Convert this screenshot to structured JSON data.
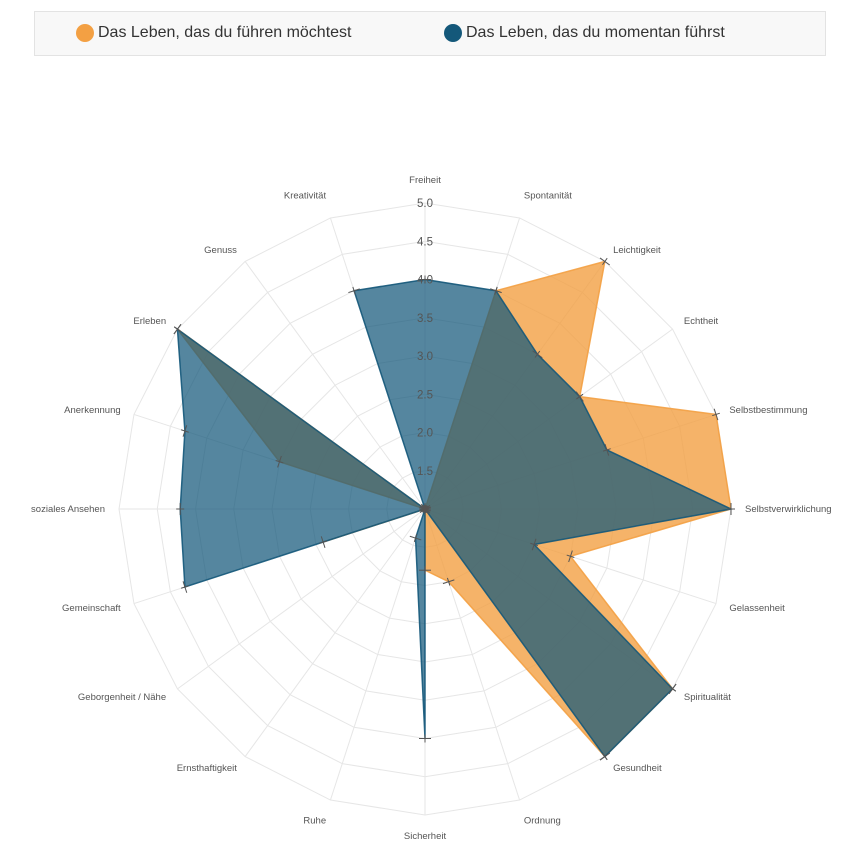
{
  "legend": {
    "items": [
      {
        "label": "Das Leben, das du führen möchtest",
        "color": "#f3a043"
      },
      {
        "label": "Das Leben, das du momentan führst",
        "color": "#14587a"
      }
    ]
  },
  "chart_data": {
    "type": "radar",
    "axes": [
      "Freiheit",
      "Spontanität",
      "Leichtigkeit",
      "Echtheit",
      "Selbstbestimmung",
      "Selbstverwirklichung",
      "Gelassenheit",
      "Spiritualität",
      "Gesundheit",
      "Ordnung",
      "Sicherheit",
      "Ruhe",
      "Ernsthaftigkeit",
      "Geborgenheit / Nähe",
      "Gemeinschaft",
      "soziales Ansehen",
      "Anerkennung",
      "Erleben",
      "Genuss",
      "Kreativität"
    ],
    "rmin": 1.0,
    "rmax": 5.0,
    "ticks": [
      "1.0",
      "1.5",
      "2.0",
      "2.5",
      "3.0",
      "3.5",
      "4.0",
      "4.5",
      "5.0"
    ],
    "grid": true,
    "legend_position": "top",
    "series": [
      {
        "name": "Das Leben, das du führen möchtest",
        "color": "#f3a043",
        "values": [
          1,
          4,
          5,
          3.5,
          5,
          5,
          3,
          5,
          5,
          2,
          1.8,
          1,
          1,
          1,
          2.4,
          1,
          3,
          5,
          1,
          1
        ]
      },
      {
        "name": "Das Leben, das du momentan führst",
        "color": "#14587a",
        "values": [
          4,
          4,
          3.5,
          3.5,
          3.5,
          5,
          2.5,
          5,
          5,
          1,
          4,
          1.4,
          1,
          1,
          4.3,
          4.2,
          4.3,
          5,
          1,
          4
        ]
      }
    ]
  }
}
